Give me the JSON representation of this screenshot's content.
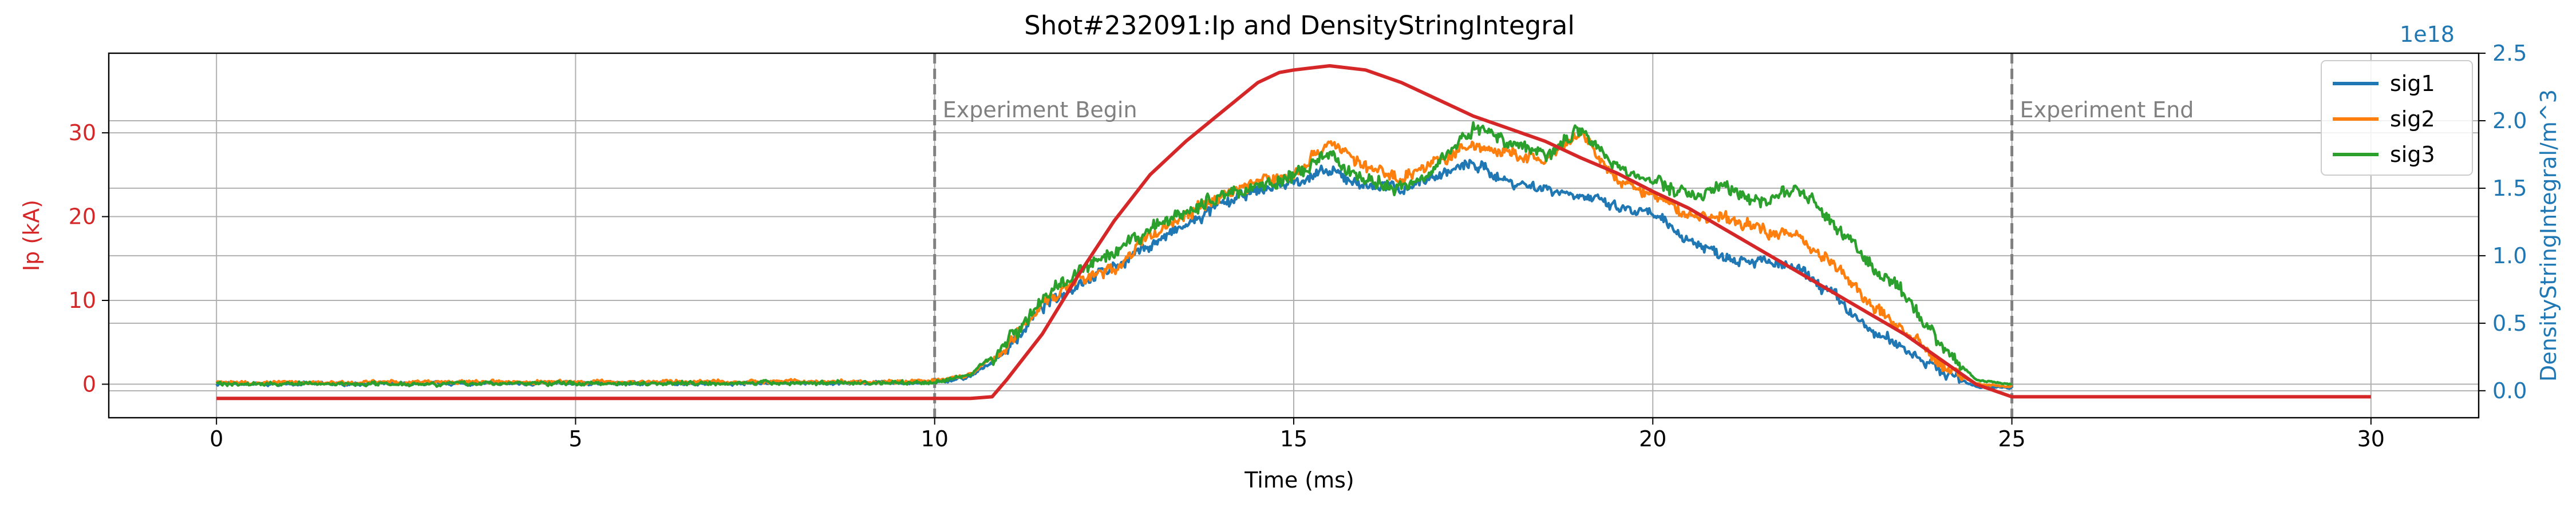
{
  "chart_data": {
    "type": "line",
    "title": "Shot#232091:Ip and DensityStringIntegral",
    "xlabel": "Time (ms)",
    "ylabel_left": "Ip (kA)",
    "ylabel_right": "DensityStringIntegral/m^3",
    "right_axis_offset_label": "1e18",
    "xlim": [
      -1.5,
      31.5
    ],
    "ylim_left": [
      -4,
      39.5
    ],
    "ylim_right_1e18": [
      -0.2,
      2.5
    ],
    "x_ticks": [
      0,
      5,
      10,
      15,
      20,
      25,
      30
    ],
    "x_tick_labels": [
      "0",
      "5",
      "10",
      "15",
      "20",
      "25",
      "30"
    ],
    "y_left_ticks": [
      0,
      10,
      20,
      30
    ],
    "y_left_tick_labels": [
      "0",
      "10",
      "20",
      "30"
    ],
    "y_right_ticks": [
      0.0,
      0.5,
      1.0,
      1.5,
      2.0,
      2.5
    ],
    "y_right_tick_labels": [
      "0.0",
      "0.5",
      "1.0",
      "1.5",
      "2.0",
      "2.5"
    ],
    "grid": true,
    "legend_position": "top-right",
    "annotations": [
      {
        "x": 10,
        "text": "Experiment Begin"
      },
      {
        "x": 25,
        "text": "Experiment End"
      }
    ],
    "ip_series": {
      "name": "",
      "axis": "left",
      "color": "#d62728",
      "x": [
        0,
        10.5,
        10.8,
        11,
        11.5,
        12,
        12.5,
        13,
        13.5,
        14,
        14.5,
        14.8,
        15,
        15.5,
        16,
        16.5,
        17,
        17.5,
        18,
        18.5,
        19,
        19.5,
        20,
        20.5,
        21,
        21.5,
        22,
        22.5,
        23,
        23.5,
        24,
        24.5,
        25,
        30
      ],
      "values": [
        -1.7,
        -1.7,
        -1.5,
        0.5,
        6,
        13,
        19.5,
        25,
        29,
        32.5,
        36,
        37.2,
        37.5,
        38,
        37.5,
        36,
        34,
        32,
        30.5,
        29,
        27,
        25.2,
        23,
        21,
        18.5,
        16,
        13.5,
        11,
        8.5,
        6,
        3,
        0,
        -1.5,
        -1.5
      ]
    },
    "density_series": [
      {
        "name": "sig1",
        "axis": "right",
        "color": "#1f77b4",
        "x": [
          0,
          10,
          10.5,
          11,
          11.5,
          12,
          12.5,
          13,
          13.5,
          14,
          14.5,
          15,
          15.5,
          16,
          16.5,
          17,
          17.5,
          18,
          18.5,
          19,
          19.5,
          20,
          20.5,
          21,
          21.5,
          22,
          22.5,
          23,
          23.5,
          24,
          24.5,
          25
        ],
        "values": [
          0.05,
          0.06,
          0.1,
          0.3,
          0.62,
          0.8,
          0.92,
          1.08,
          1.22,
          1.38,
          1.48,
          1.55,
          1.62,
          1.52,
          1.5,
          1.6,
          1.68,
          1.55,
          1.5,
          1.45,
          1.35,
          1.3,
          1.12,
          1.0,
          0.96,
          0.9,
          0.72,
          0.45,
          0.32,
          0.15,
          0.03,
          0.02
        ]
      },
      {
        "name": "sig2",
        "axis": "right",
        "color": "#ff7f0e",
        "x": [
          0,
          10,
          10.5,
          11,
          11.5,
          12,
          12.5,
          13,
          13.5,
          14,
          14.5,
          15,
          15.5,
          16,
          16.5,
          17,
          17.5,
          18,
          18.5,
          19,
          19.5,
          20,
          20.5,
          21,
          21.5,
          22,
          22.5,
          23,
          23.5,
          24,
          24.5,
          25
        ],
        "values": [
          0.06,
          0.07,
          0.12,
          0.32,
          0.65,
          0.82,
          0.9,
          1.15,
          1.3,
          1.45,
          1.55,
          1.6,
          1.85,
          1.65,
          1.58,
          1.7,
          1.82,
          1.75,
          1.7,
          1.9,
          1.55,
          1.45,
          1.3,
          1.28,
          1.2,
          1.15,
          0.95,
          0.65,
          0.45,
          0.2,
          0.05,
          0.03
        ]
      },
      {
        "name": "sig3",
        "axis": "right",
        "color": "#2ca02c",
        "x": [
          0,
          10,
          10.5,
          11,
          11.5,
          12,
          12.5,
          13,
          13.5,
          14,
          14.5,
          15,
          15.5,
          16,
          16.5,
          17,
          17.5,
          18,
          18.5,
          19,
          19.5,
          20,
          20.5,
          21,
          21.5,
          22,
          22.5,
          23,
          23.5,
          24,
          24.5,
          25
        ],
        "values": [
          0.05,
          0.06,
          0.12,
          0.35,
          0.68,
          0.88,
          1.0,
          1.2,
          1.32,
          1.45,
          1.52,
          1.58,
          1.75,
          1.55,
          1.5,
          1.68,
          1.95,
          1.85,
          1.75,
          1.95,
          1.65,
          1.55,
          1.45,
          1.5,
          1.4,
          1.5,
          1.25,
          0.95,
          0.7,
          0.35,
          0.08,
          0.05
        ]
      }
    ],
    "colors": {
      "left_axis": "#d62728",
      "right_axis": "#1f77b4",
      "annotation": "#808080",
      "grid": "#b0b0b0"
    }
  }
}
